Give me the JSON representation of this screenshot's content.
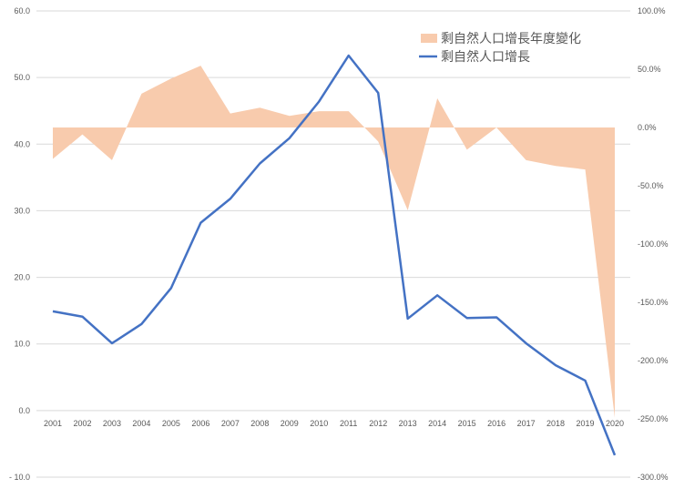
{
  "chart_data": {
    "type": "line",
    "categories": [
      "2001",
      "2002",
      "2003",
      "2004",
      "2005",
      "2006",
      "2007",
      "2008",
      "2009",
      "2010",
      "2011",
      "2012",
      "2013",
      "2014",
      "2015",
      "2016",
      "2017",
      "2018",
      "2019",
      "2020"
    ],
    "series": [
      {
        "name": "剩自然人口增長年度變化",
        "type": "area",
        "axis": "right",
        "color": "#F8CBAD",
        "values": [
          -27,
          -6,
          -28,
          29,
          42,
          53,
          12,
          17,
          10,
          14,
          14,
          -12,
          -71,
          25,
          -19,
          0,
          -28,
          -33,
          -36,
          -249
        ]
      },
      {
        "name": "剩自然人口增長",
        "type": "line",
        "axis": "left",
        "color": "#4472C4",
        "values": [
          14.9,
          14.1,
          10.1,
          13.0,
          18.4,
          28.2,
          31.8,
          37.1,
          40.9,
          46.4,
          53.3,
          47.7,
          13.8,
          17.3,
          13.9,
          14.0,
          10.1,
          6.8,
          4.5,
          -6.7
        ]
      }
    ],
    "y_left": {
      "min": -10,
      "max": 60,
      "step": 10,
      "tick_labels": [
        "- 10.0",
        "0.0",
        "10.0",
        "20.0",
        "30.0",
        "40.0",
        "50.0",
        "60.0"
      ]
    },
    "y_right": {
      "min": -300,
      "max": 100,
      "step": 50,
      "tick_labels": [
        "-300.0%",
        "-250.0%",
        "-200.0%",
        "-150.0%",
        "-100.0%",
        "-50.0%",
        "0.0%",
        "50.0%",
        "100.0%"
      ]
    },
    "grid": true,
    "legend_position": "top-right"
  }
}
